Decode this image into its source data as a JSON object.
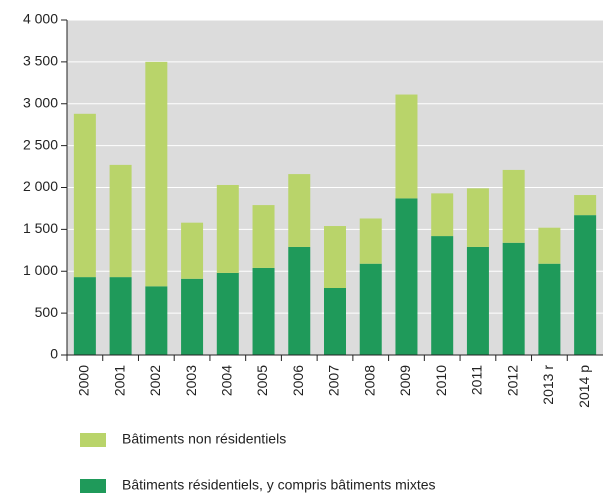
{
  "chart_data": {
    "type": "stacked_bar",
    "categories": [
      "2000",
      "2001",
      "2002",
      "2003",
      "2004",
      "2005",
      "2006",
      "2007",
      "2008",
      "2009",
      "2010",
      "2011",
      "2012",
      "2013 r",
      "2014 p"
    ],
    "series": [
      {
        "name": "Bâtiments non résidentiels",
        "color": "#b9d46a",
        "values": [
          1950,
          1340,
          2680,
          670,
          1050,
          750,
          870,
          740,
          540,
          1240,
          510,
          700,
          870,
          430,
          240
        ]
      },
      {
        "name": "Bâtiments résidentiels, y compris bâtiments mixtes",
        "color": "#1f9a5a",
        "values": [
          930,
          930,
          820,
          910,
          980,
          1040,
          1290,
          800,
          1090,
          1870,
          1420,
          1290,
          1340,
          1090,
          1670
        ]
      }
    ],
    "ylim": [
      0,
      4000
    ],
    "yticks": [
      0,
      500,
      {
        "value": 1000,
        "label": "1 000"
      },
      {
        "value": 1500,
        "label": "1 500"
      },
      {
        "value": 2000,
        "label": "2 000"
      },
      {
        "value": 2500,
        "label": "2 500"
      },
      {
        "value": 3000,
        "label": "3 000"
      },
      {
        "value": 3500,
        "label": "3 500"
      },
      {
        "value": 4000,
        "label": "4 000"
      }
    ],
    "grid": true
  }
}
